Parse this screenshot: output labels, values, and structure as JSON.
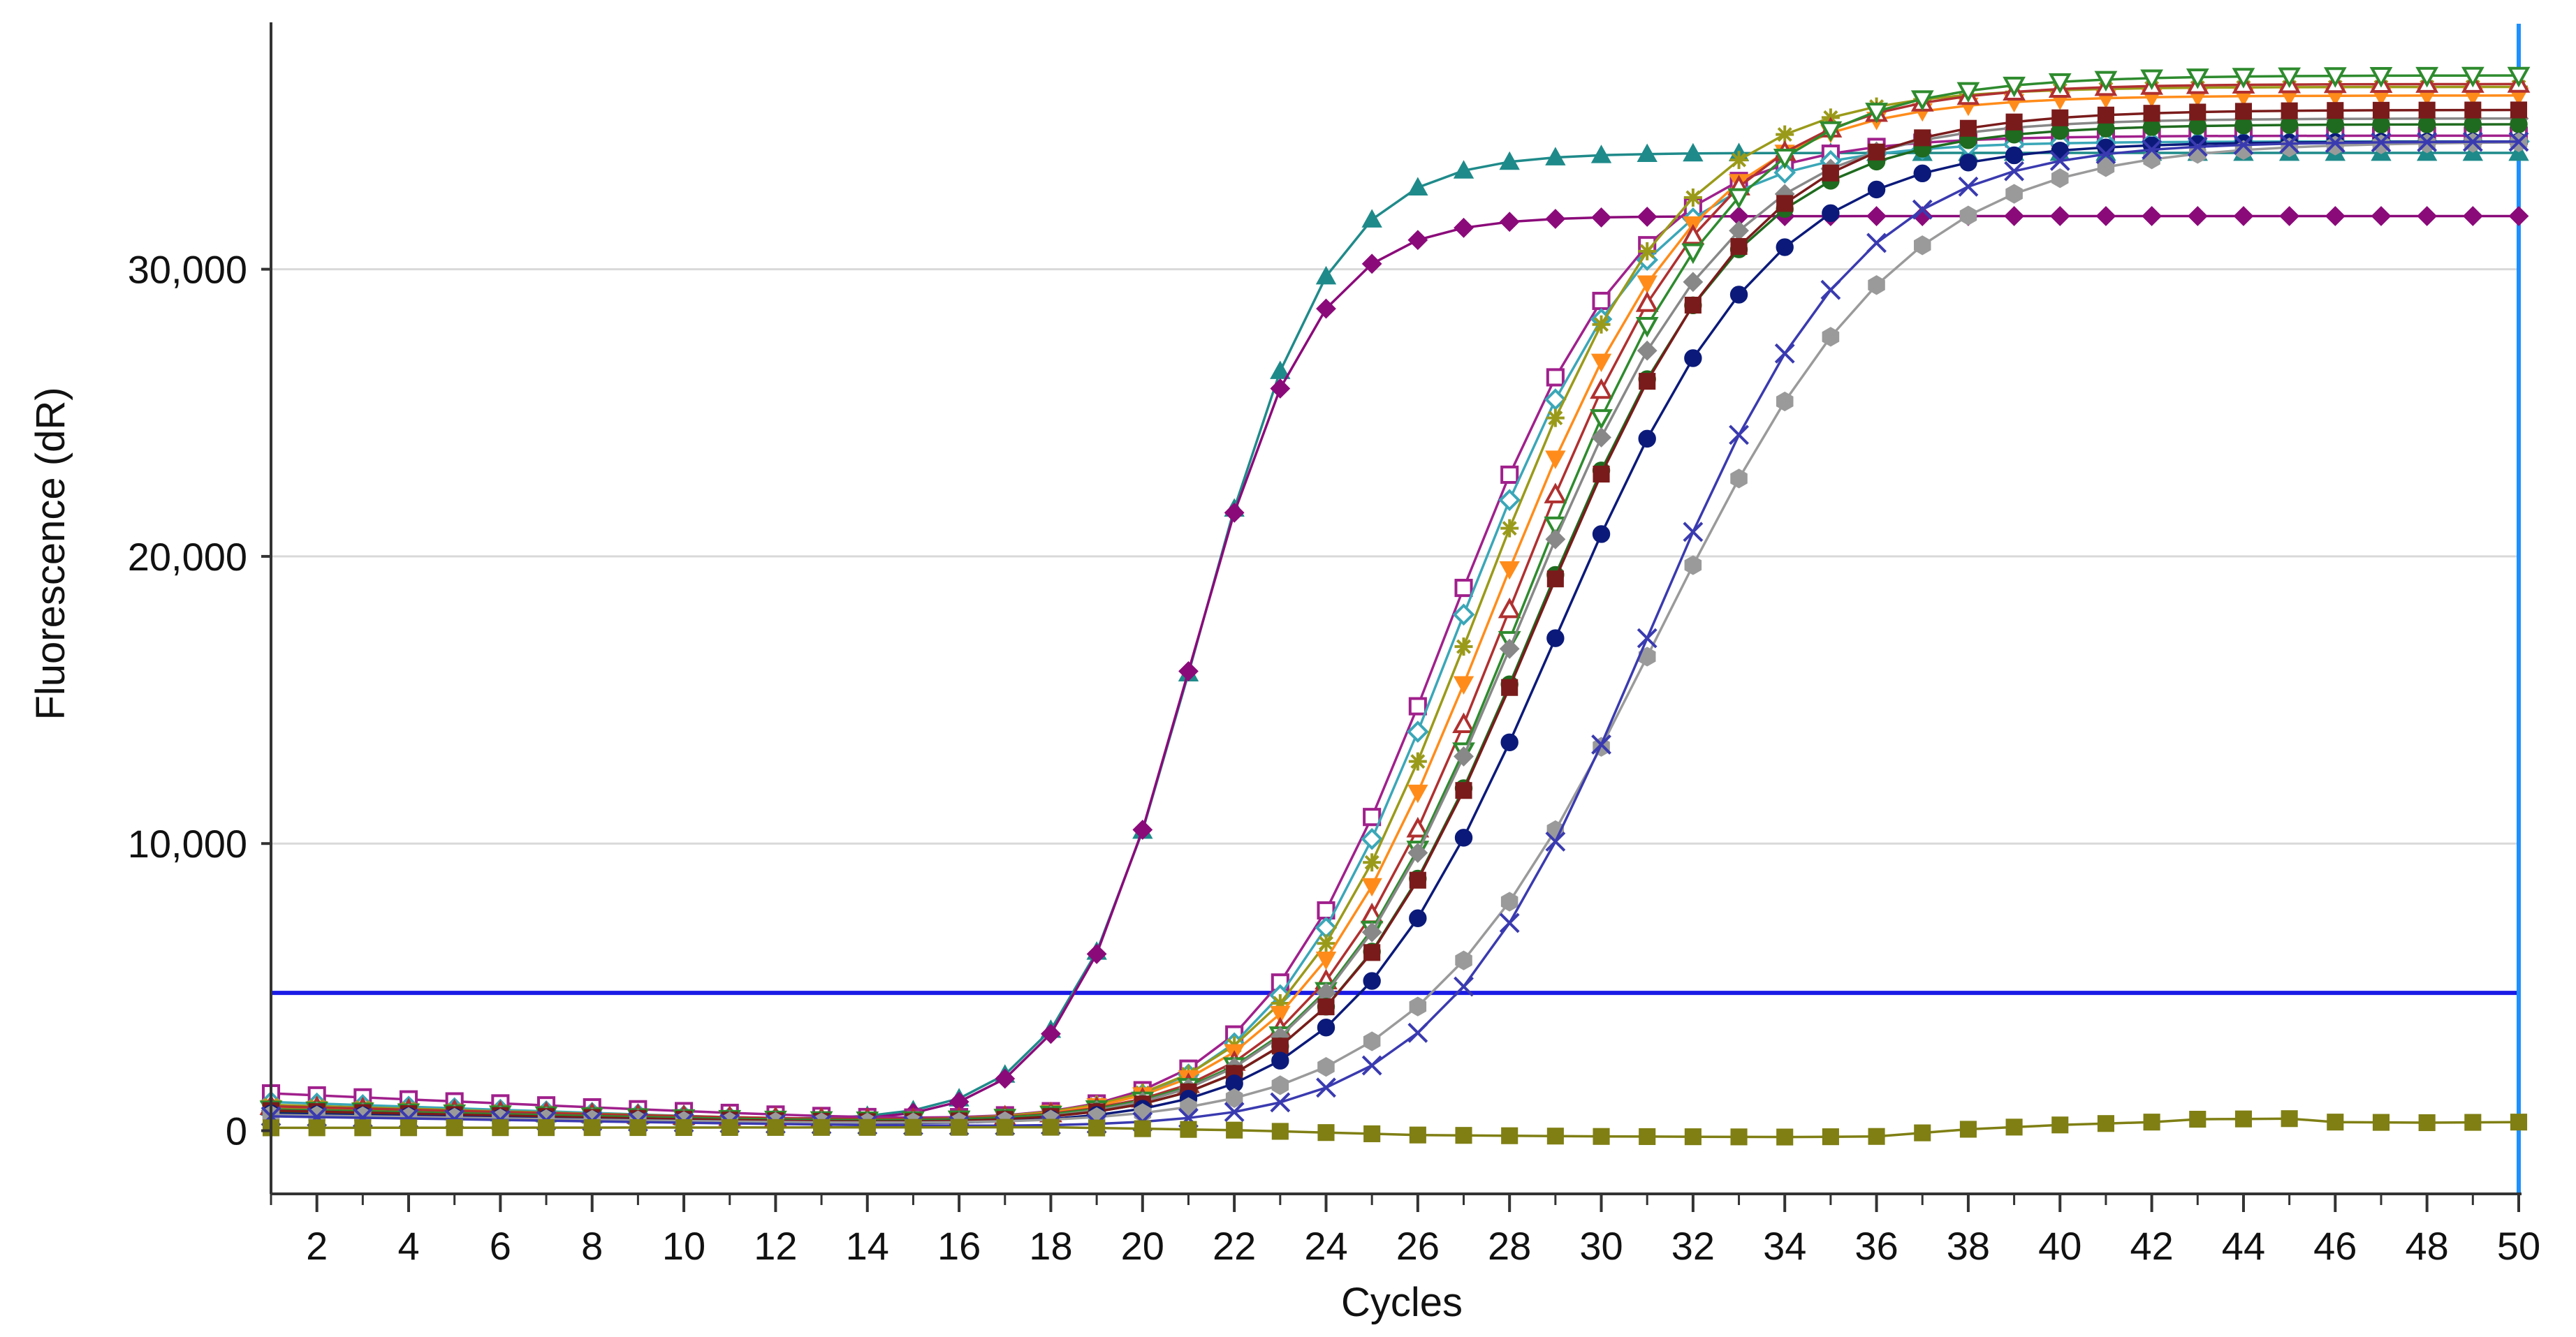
{
  "chart_data": {
    "type": "line",
    "title": "",
    "xlabel": "Cycles",
    "ylabel": "Fluorescence (dR)",
    "xlim": [
      1,
      50
    ],
    "ylim": [
      -2200,
      38500
    ],
    "xticks": [
      2,
      4,
      6,
      8,
      10,
      12,
      14,
      16,
      18,
      20,
      22,
      24,
      26,
      28,
      30,
      32,
      34,
      36,
      38,
      40,
      42,
      44,
      46,
      48,
      50
    ],
    "yticks": [
      0,
      10000,
      20000,
      30000
    ],
    "ytick_labels": [
      "0",
      "10,000",
      "20,000",
      "30,000"
    ],
    "grid": "horizontal",
    "threshold": {
      "value": 4800,
      "color": "#1a1ae6"
    },
    "end_line": {
      "x": 50,
      "color": "#1e90ff"
    },
    "colors": {
      "axis": "#333333",
      "grid": "#d9d9d9",
      "background": "#ffffff"
    },
    "series": [
      {
        "name": "teal triangle",
        "color": "#1f8a8a",
        "marker": "triangle-filled",
        "baseline": 800,
        "drift": 40,
        "plateau": 34200,
        "ct": 21.2,
        "slope": 1.45
      },
      {
        "name": "purple diamond",
        "color": "#8b0a7a",
        "marker": "diamond-filled",
        "baseline": 700,
        "drift": 35,
        "plateau": 32000,
        "ct": 21.0,
        "slope": 1.38
      },
      {
        "name": "magenta open square",
        "color": "#a0208c",
        "marker": "square-open",
        "baseline": 1300,
        "drift": 70,
        "plateau": 34800,
        "ct": 26.6,
        "slope": 2.1
      },
      {
        "name": "cyan open diamond",
        "color": "#3aa7b8",
        "marker": "diamond-open",
        "baseline": 1000,
        "drift": 55,
        "plateau": 34600,
        "ct": 26.8,
        "slope": 2.1
      },
      {
        "name": "olive star",
        "color": "#9a9a1a",
        "marker": "star",
        "baseline": 900,
        "drift": 45,
        "plateau": 36500,
        "ct": 27.3,
        "slope": 2.2
      },
      {
        "name": "orange inverted triangle",
        "color": "#ff8c1a",
        "marker": "triangle-down-filled",
        "baseline": 800,
        "drift": 40,
        "plateau": 36200,
        "ct": 27.6,
        "slope": 2.25
      },
      {
        "name": "dark red open triangle",
        "color": "#b03030",
        "marker": "triangle-open",
        "baseline": 850,
        "drift": 40,
        "plateau": 36600,
        "ct": 28.0,
        "slope": 2.25
      },
      {
        "name": "green open inverted triangle",
        "color": "#2e8b2e",
        "marker": "triangle-down-open",
        "baseline": 750,
        "drift": 35,
        "plateau": 36900,
        "ct": 28.3,
        "slope": 2.3
      },
      {
        "name": "gray diamond",
        "color": "#888888",
        "marker": "diamond-filled",
        "baseline": 700,
        "drift": 35,
        "plateau": 35400,
        "ct": 28.2,
        "slope": 2.3
      },
      {
        "name": "dark green circle",
        "color": "#1f6b1f",
        "marker": "circle-filled",
        "baseline": 650,
        "drift": 30,
        "plateau": 35200,
        "ct": 28.5,
        "slope": 2.3
      },
      {
        "name": "maroon square",
        "color": "#7a1b1b",
        "marker": "square-filled",
        "baseline": 700,
        "drift": 35,
        "plateau": 35700,
        "ct": 28.6,
        "slope": 2.35
      },
      {
        "name": "navy circle",
        "color": "#0b1a7a",
        "marker": "circle-filled",
        "baseline": 600,
        "drift": 30,
        "plateau": 34600,
        "ct": 29.0,
        "slope": 2.35
      },
      {
        "name": "silver hexagon",
        "color": "#9a9a9a",
        "marker": "hexagon-filled",
        "baseline": 550,
        "drift": 25,
        "plateau": 34600,
        "ct": 31.2,
        "slope": 2.7
      },
      {
        "name": "indigo cross",
        "color": "#3a3ab0",
        "marker": "x",
        "baseline": 500,
        "drift": 25,
        "plateau": 34600,
        "ct": 31.0,
        "slope": 2.3
      },
      {
        "name": "NTC olive square",
        "color": "#7f7f14",
        "marker": "square-filled",
        "flat": [
          {
            "x": 1,
            "y": 100
          },
          {
            "x": 18,
            "y": 120
          },
          {
            "x": 22,
            "y": 20
          },
          {
            "x": 26,
            "y": -150
          },
          {
            "x": 30,
            "y": -200
          },
          {
            "x": 34,
            "y": -220
          },
          {
            "x": 36,
            "y": -200
          },
          {
            "x": 38,
            "y": 50
          },
          {
            "x": 40,
            "y": 200
          },
          {
            "x": 42,
            "y": 300
          },
          {
            "x": 43,
            "y": 400
          },
          {
            "x": 45,
            "y": 420
          },
          {
            "x": 46,
            "y": 300
          },
          {
            "x": 48,
            "y": 280
          },
          {
            "x": 50,
            "y": 300
          }
        ]
      }
    ]
  }
}
